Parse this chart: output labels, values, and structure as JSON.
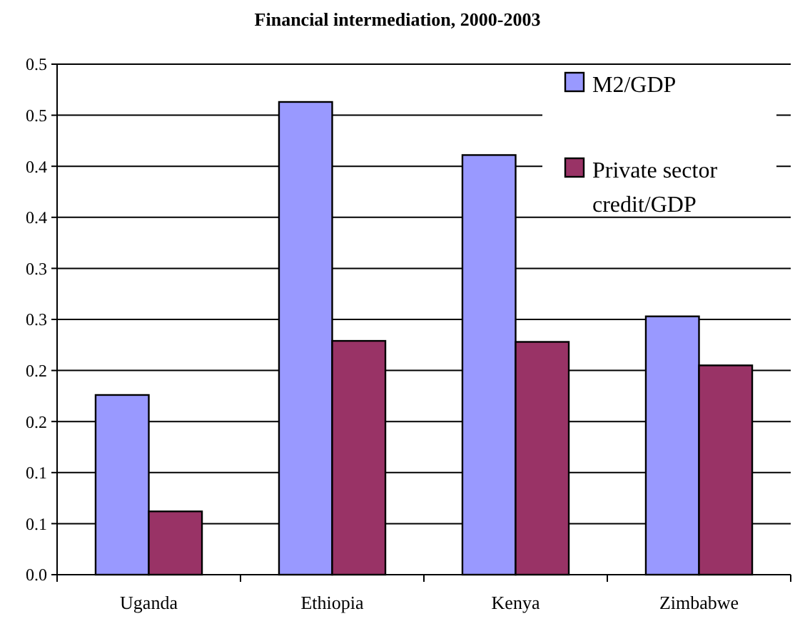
{
  "chart_data": {
    "type": "bar",
    "title": "Financial intermediation, 2000-2003",
    "categories": [
      "Uganda",
      "Ethiopia",
      "Kenya",
      "Zimbabwe"
    ],
    "series": [
      {
        "name": "M2/GDP",
        "color": "#9999ff",
        "values": [
          0.176,
          0.463,
          0.411,
          0.253
        ]
      },
      {
        "name": "Private sector credit/GDP",
        "color": "#993366",
        "values": [
          0.062,
          0.229,
          0.228,
          0.205
        ]
      }
    ],
    "ylim": [
      0,
      0.5
    ],
    "yticks": [
      {
        "value": 0,
        "label": "0.0"
      },
      {
        "value": 0.05,
        "label": "0.1"
      },
      {
        "value": 0.1,
        "label": "0.1"
      },
      {
        "value": 0.15,
        "label": "0.2"
      },
      {
        "value": 0.2,
        "label": "0.2"
      },
      {
        "value": 0.25,
        "label": "0.3"
      },
      {
        "value": 0.3,
        "label": "0.3"
      },
      {
        "value": 0.35,
        "label": "0.4"
      },
      {
        "value": 0.4,
        "label": "0.4"
      },
      {
        "value": 0.45,
        "label": "0.5"
      },
      {
        "value": 0.5,
        "label": "0.5"
      }
    ],
    "grid": "y",
    "legend": "top right"
  }
}
